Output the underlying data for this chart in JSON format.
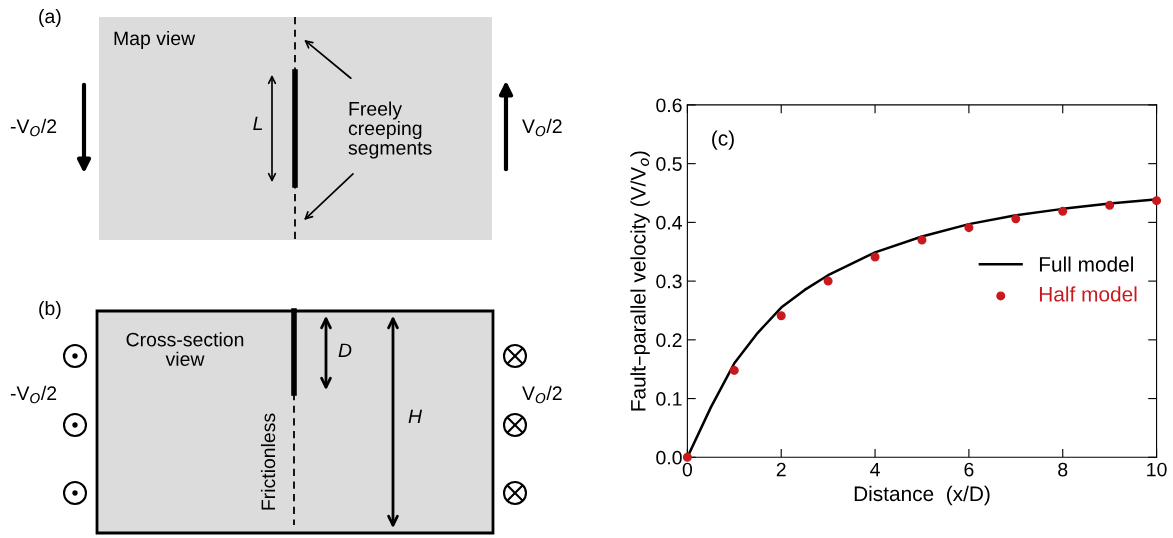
{
  "chart_data": [
    {
      "type": "other",
      "annotations": [
        "(a)",
        "Map view",
        "L",
        "Freely\ncreeping\nsegments",
        "-V$_{O}$/2",
        "V$_{O}$/2"
      ]
    },
    {
      "type": "other",
      "annotations": [
        "(b)",
        "Cross-section\nview",
        "D",
        "H",
        "Frictionless",
        "-V$_{O}$/2",
        "V$_{O}$/2"
      ]
    },
    {
      "type": "line",
      "xlabel": "Distance  (x/D)",
      "ylabel": "Fault–parallel velocity (V/V$_{o}$)",
      "annotations": [
        "(c)"
      ],
      "xlim": [
        0,
        10
      ],
      "xticks": [
        0,
        2,
        4,
        6,
        8,
        10
      ],
      "ylim": [
        0,
        0.6
      ],
      "yticks": [
        {
          "value": 0,
          "label": "0.0"
        },
        0.1,
        0.2,
        0.3,
        0.4,
        0.5,
        0.6
      ],
      "grid": false,
      "legend": "right",
      "series": [
        {
          "name": "Full model",
          "type": "line",
          "color": "#000000",
          "marker": "none",
          "line_style": "solid",
          "x": [
            0,
            0.5,
            1,
            1.5,
            2,
            2.5,
            3,
            4,
            5,
            6,
            7,
            8,
            9,
            10
          ],
          "values": [
            0,
            0.085,
            0.16,
            0.212,
            0.255,
            0.285,
            0.31,
            0.349,
            0.376,
            0.397,
            0.412,
            0.423,
            0.432,
            0.439
          ]
        },
        {
          "name": "Half model",
          "type": "scatter",
          "color": "#c8191e",
          "marker": "circle",
          "x": [
            0,
            1,
            2,
            3,
            4,
            5,
            6,
            7,
            8,
            9,
            10
          ],
          "values": [
            0,
            0.148,
            0.241,
            0.3,
            0.341,
            0.37,
            0.391,
            0.406,
            0.419,
            0.429,
            0.437
          ]
        }
      ]
    }
  ]
}
